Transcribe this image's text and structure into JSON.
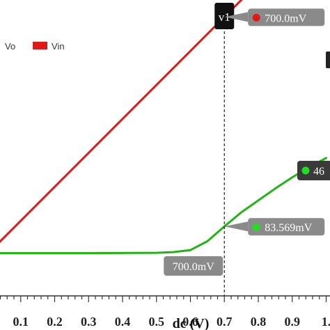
{
  "chart_data": {
    "type": "line",
    "xlabel": "dc (V)",
    "xlim": [
      0.0,
      1.0
    ],
    "ylim": [
      0.0,
      1.0
    ],
    "x_ticks": [
      0.1,
      0.2,
      0.3,
      0.4,
      0.5,
      0.6,
      0.7,
      0.8,
      0.9,
      1.0
    ],
    "x_tick_labels": [
      "0.1",
      "0.2",
      "0.3",
      "0.4",
      "0.5",
      "0.6",
      "0.7",
      "0.8",
      "0.9",
      "1."
    ],
    "legend": {
      "placement": "top-left",
      "entries": [
        "Vo",
        "Vin"
      ]
    },
    "series": [
      {
        "name": "Vo",
        "color": "#22b414",
        "x": [
          0.0,
          0.3,
          0.5,
          0.55,
          0.6,
          0.65,
          0.7,
          0.75,
          0.8,
          0.85,
          0.9,
          0.95,
          1.0
        ],
        "y": [
          0.005,
          0.005,
          0.006,
          0.008,
          0.014,
          0.04,
          0.0836,
          0.125,
          0.16,
          0.195,
          0.228,
          0.258,
          0.285
        ]
      },
      {
        "name": "Vin",
        "color": "#e01818",
        "x": [
          0.0,
          1.0
        ],
        "y": [
          0.0,
          1.0
        ]
      }
    ],
    "cursor": {
      "label": "v1",
      "x": 0.7,
      "x_readout": "700.0mV",
      "markers": [
        {
          "series": "Vin",
          "text": "700.0mV",
          "dot_color": "#e01818",
          "y": 0.7
        },
        {
          "series": "Vo",
          "text": "83.569mV",
          "dot_color": "#22dd22",
          "y": 0.0836
        }
      ],
      "extra_marker": {
        "text": "46",
        "dot_color": "#22dd22"
      }
    }
  }
}
